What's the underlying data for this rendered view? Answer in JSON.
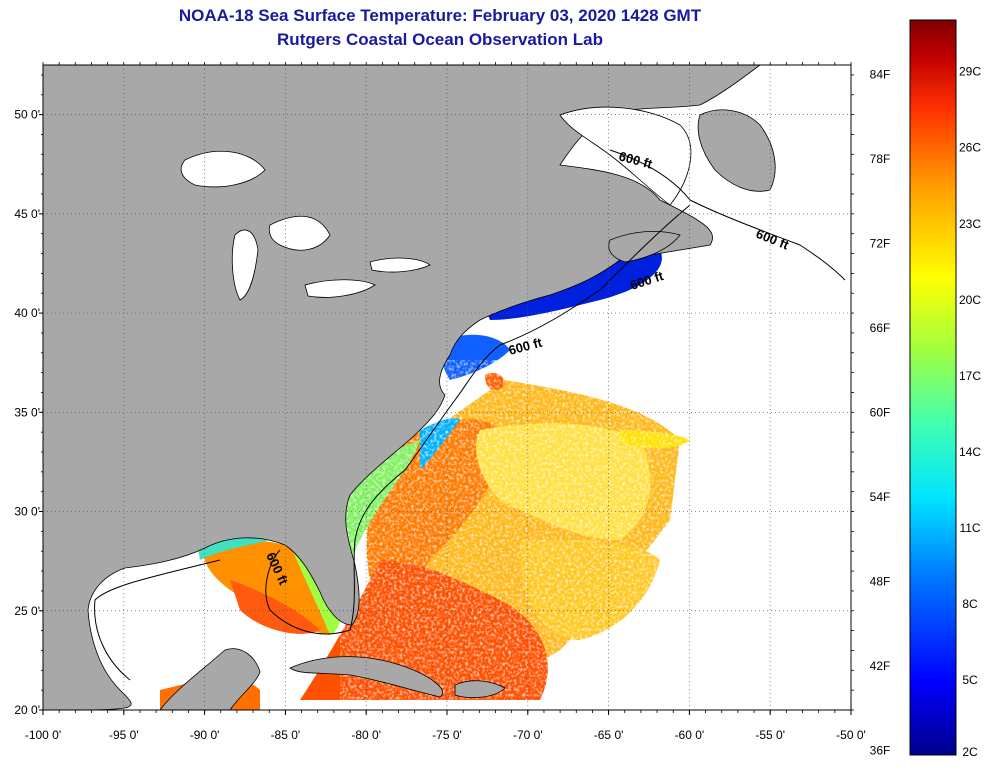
{
  "header": {
    "title": "NOAA-18 Sea Surface Temperature:  February 03, 2020 1428 GMT",
    "subtitle": "Rutgers Coastal Ocean Observation Lab"
  },
  "map": {
    "lon_range": [
      -100,
      -50
    ],
    "lat_range": [
      20,
      52.5
    ],
    "x_ticks": [
      {
        "value": -100,
        "label": "-100 0'"
      },
      {
        "value": -95,
        "label": "-95 0'"
      },
      {
        "value": -90,
        "label": "-90 0'"
      },
      {
        "value": -85,
        "label": "-85 0'"
      },
      {
        "value": -80,
        "label": "-80 0'"
      },
      {
        "value": -75,
        "label": "-75 0'"
      },
      {
        "value": -70,
        "label": "-70 0'"
      },
      {
        "value": -65,
        "label": "-65 0'"
      },
      {
        "value": -60,
        "label": "-60 0'"
      },
      {
        "value": -55,
        "label": "-55 0'"
      },
      {
        "value": -50,
        "label": "-50 0'"
      }
    ],
    "y_ticks": [
      {
        "value": 20,
        "label": "20 0'"
      },
      {
        "value": 25,
        "label": "25 0'"
      },
      {
        "value": 30,
        "label": "30 0'"
      },
      {
        "value": 35,
        "label": "35 0'"
      },
      {
        "value": 40,
        "label": "40 0'"
      },
      {
        "value": 45,
        "label": "45 0'"
      },
      {
        "value": 50,
        "label": "50 0'"
      }
    ],
    "grid": true,
    "isobath_label": "600 ft",
    "isobath_labels": [
      {
        "label": "600 ft"
      },
      {
        "label": "600 ft"
      },
      {
        "label": "600 ft"
      },
      {
        "label": "600 ft"
      },
      {
        "label": "600 ft"
      }
    ],
    "colors": {
      "land": "#a8a8a8",
      "ocean_missing": "#ffffff",
      "coast": "#000000"
    }
  },
  "colorbar": {
    "range_c": [
      2,
      31
    ],
    "f_labels": [
      "84F",
      "78F",
      "72F",
      "66F",
      "60F",
      "54F",
      "48F",
      "42F",
      "36F"
    ],
    "c_labels": [
      "29C",
      "26C",
      "23C",
      "20C",
      "17C",
      "14C",
      "11C",
      "8C",
      "5C",
      "2C"
    ],
    "colors": [
      "#00008b",
      "#0000ff",
      "#0080ff",
      "#00e5ff",
      "#40ffb0",
      "#a0ff40",
      "#ffff00",
      "#ffa000",
      "#ff3000",
      "#c00000",
      "#800000"
    ]
  }
}
